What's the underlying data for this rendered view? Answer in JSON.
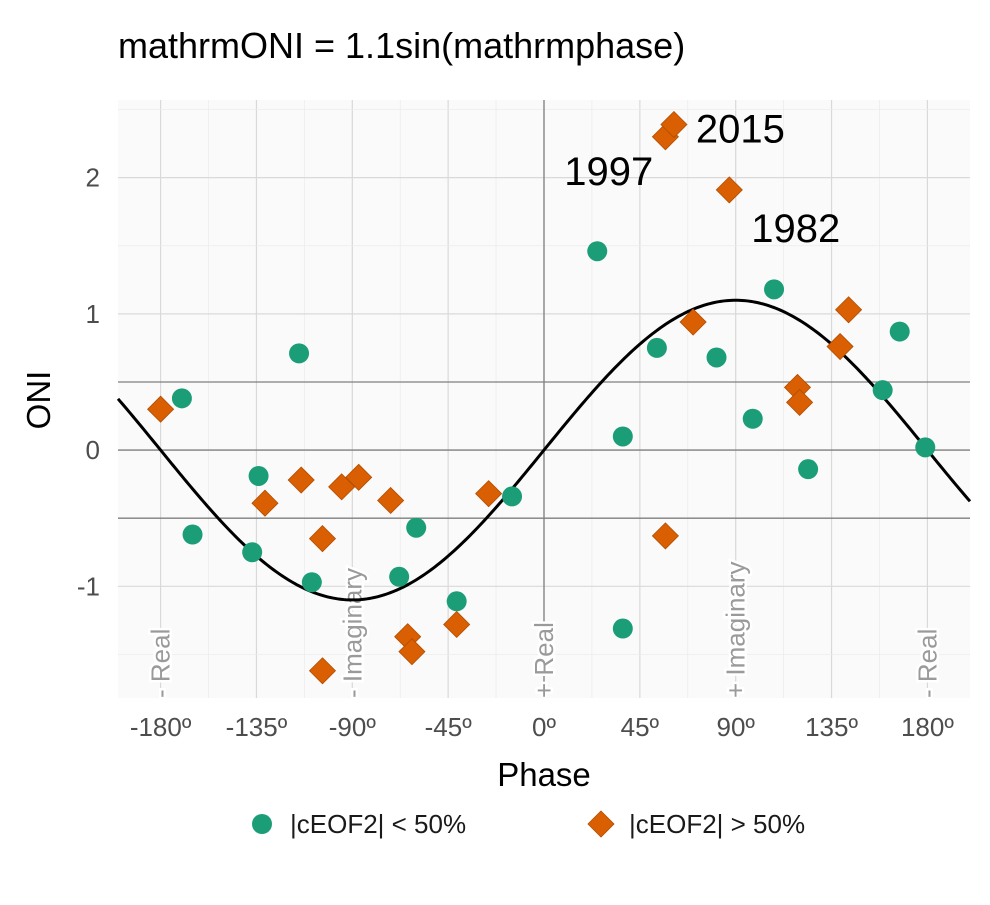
{
  "chart_data": {
    "type": "scatter",
    "title": "mathrmONI = 1.1sin(mathrmphase)",
    "xlabel": "Phase",
    "ylabel": "ONI",
    "xlim": [
      -200,
      200
    ],
    "ylim": [
      -1.82,
      2.57
    ],
    "x_ticks": [
      -180,
      -135,
      -90,
      -45,
      0,
      45,
      90,
      135,
      180
    ],
    "x_tick_labels": [
      "-180º",
      "-135º",
      "-90º",
      "-45º",
      "0º",
      "45º",
      "90º",
      "135º",
      "180º"
    ],
    "y_ticks": [
      -1,
      0,
      1,
      2
    ],
    "y_tick_labels": [
      "-1",
      "0",
      "1",
      "2"
    ],
    "grid": true,
    "curve": {
      "amplitude": 1.1,
      "function": "sin"
    },
    "reference_lines": {
      "horizontal": [
        -0.5,
        0,
        0.5
      ],
      "vertical": [
        0
      ]
    },
    "phase_labels": [
      {
        "x": -180,
        "text": "- Real"
      },
      {
        "x": -90,
        "text": "- Imaginary"
      },
      {
        "x": 0,
        "text": "+ Real"
      },
      {
        "x": 90,
        "text": "+ Imaginary"
      },
      {
        "x": 180,
        "text": "- Real"
      }
    ],
    "series": [
      {
        "name": "|cEOF2| < 50%",
        "marker": "circle",
        "color": "#1b9e77",
        "points": [
          {
            "x": -170,
            "y": 0.38
          },
          {
            "x": -165,
            "y": -0.62
          },
          {
            "x": -137,
            "y": -0.75
          },
          {
            "x": -134,
            "y": -0.19
          },
          {
            "x": -115,
            "y": 0.71
          },
          {
            "x": -109,
            "y": -0.97
          },
          {
            "x": -68,
            "y": -0.93
          },
          {
            "x": -60,
            "y": -0.57
          },
          {
            "x": -41,
            "y": -1.11
          },
          {
            "x": -15,
            "y": -0.34
          },
          {
            "x": 25,
            "y": 1.46
          },
          {
            "x": 37,
            "y": 0.1
          },
          {
            "x": 37,
            "y": -1.31
          },
          {
            "x": 53,
            "y": 0.75
          },
          {
            "x": 81,
            "y": 0.68
          },
          {
            "x": 98,
            "y": 0.23
          },
          {
            "x": 108,
            "y": 1.18
          },
          {
            "x": 124,
            "y": -0.14
          },
          {
            "x": 159,
            "y": 0.44
          },
          {
            "x": 167,
            "y": 0.87
          },
          {
            "x": 179,
            "y": 0.02
          }
        ]
      },
      {
        "name": "|cEOF2| > 50%",
        "marker": "diamond",
        "color": "#d95f02",
        "points": [
          {
            "x": -180,
            "y": 0.3
          },
          {
            "x": -131,
            "y": -0.39
          },
          {
            "x": -114,
            "y": -0.22
          },
          {
            "x": -104,
            "y": -0.65
          },
          {
            "x": -104,
            "y": -1.62
          },
          {
            "x": -95,
            "y": -0.27
          },
          {
            "x": -87,
            "y": -0.2
          },
          {
            "x": -72,
            "y": -0.37
          },
          {
            "x": -64,
            "y": -1.37
          },
          {
            "x": -62,
            "y": -1.48
          },
          {
            "x": -41,
            "y": -1.28
          },
          {
            "x": -26,
            "y": -0.32
          },
          {
            "x": 57,
            "y": 2.3
          },
          {
            "x": 61,
            "y": 2.39
          },
          {
            "x": 57,
            "y": -0.63
          },
          {
            "x": 70,
            "y": 0.94
          },
          {
            "x": 87,
            "y": 1.91
          },
          {
            "x": 119,
            "y": 0.46
          },
          {
            "x": 120,
            "y": 0.35
          },
          {
            "x": 139,
            "y": 0.76
          },
          {
            "x": 143,
            "y": 1.03
          }
        ]
      }
    ],
    "annotations": [
      {
        "x": 56,
        "y": 2.3,
        "text": "1997",
        "anchor": "end"
      },
      {
        "x": 61,
        "y": 2.39,
        "text": "2015",
        "anchor": "start"
      },
      {
        "x": 87,
        "y": 1.91,
        "text": "1982",
        "anchor": "start"
      }
    ],
    "legend": {
      "position": "bottom"
    }
  }
}
